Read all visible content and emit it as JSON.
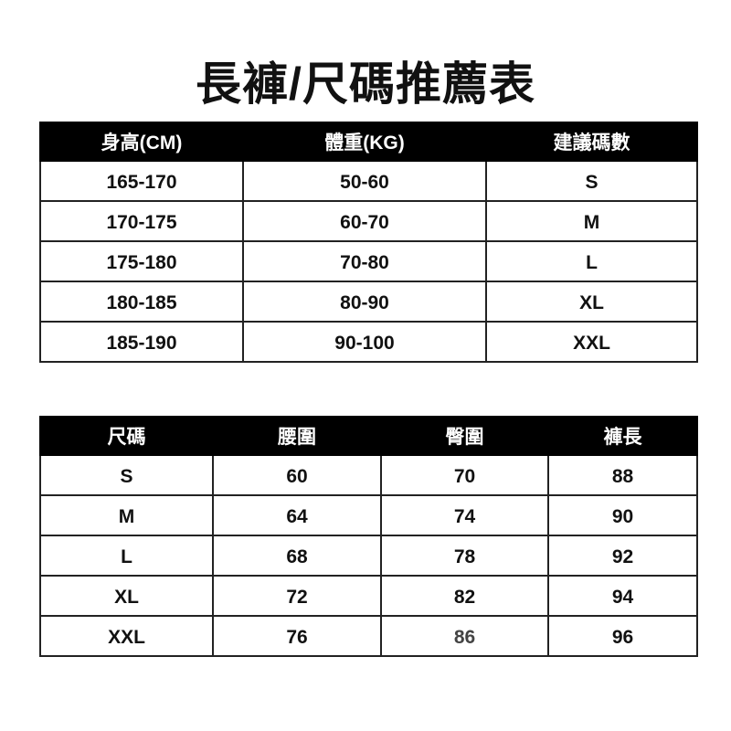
{
  "title": "長褲/尺碼推薦表",
  "table1": {
    "headers": [
      "身高(CM)",
      "體重(KG)",
      "建議碼數"
    ],
    "rows": [
      [
        "165-170",
        "50-60",
        "S"
      ],
      [
        "170-175",
        "60-70",
        "M"
      ],
      [
        "175-180",
        "70-80",
        "L"
      ],
      [
        "180-185",
        "80-90",
        "XL"
      ],
      [
        "185-190",
        "90-100",
        "XXL"
      ]
    ]
  },
  "table2": {
    "headers": [
      "尺碼",
      "腰圍",
      "臀圍",
      "褲長"
    ],
    "rows": [
      [
        "S",
        "60",
        "70",
        "88"
      ],
      [
        "M",
        "64",
        "74",
        "90"
      ],
      [
        "L",
        "68",
        "78",
        "92"
      ],
      [
        "XL",
        "72",
        "82",
        "94"
      ],
      [
        "XXL",
        "76",
        "86",
        "96"
      ]
    ]
  },
  "colors": {
    "header_bg": "#000000",
    "header_text": "#ffffff",
    "text": "#111111"
  }
}
